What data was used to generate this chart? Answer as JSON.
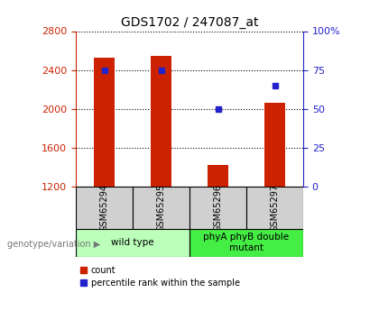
{
  "title": "GDS1702 / 247087_at",
  "samples": [
    "GSM65294",
    "GSM65295",
    "GSM65296",
    "GSM65297"
  ],
  "counts": [
    2530,
    2545,
    1420,
    2060
  ],
  "percentiles": [
    75,
    75,
    50,
    65
  ],
  "ylim_left": [
    1200,
    2800
  ],
  "ylim_right": [
    0,
    100
  ],
  "yticks_left": [
    1200,
    1600,
    2000,
    2400,
    2800
  ],
  "yticks_right": [
    0,
    25,
    50,
    75,
    100
  ],
  "yticklabels_right": [
    "0",
    "25",
    "50",
    "75",
    "100%"
  ],
  "bar_color": "#cc2200",
  "dot_color": "#2222cc",
  "bar_width": 0.35,
  "baseline": 1200,
  "groups": [
    {
      "label": "wild type",
      "indices": [
        0,
        1
      ],
      "color": "#bbffbb"
    },
    {
      "label": "phyA phyB double\nmutant",
      "indices": [
        2,
        3
      ],
      "color": "#44ee44"
    }
  ],
  "legend_items": [
    {
      "label": "count",
      "color": "#cc2200"
    },
    {
      "label": "percentile rank within the sample",
      "color": "#2222cc"
    }
  ],
  "xlabel_text": "genotype/variation",
  "background_color": "#ffffff",
  "tick_color_left": "#cc2200",
  "tick_color_right": "#2222cc"
}
